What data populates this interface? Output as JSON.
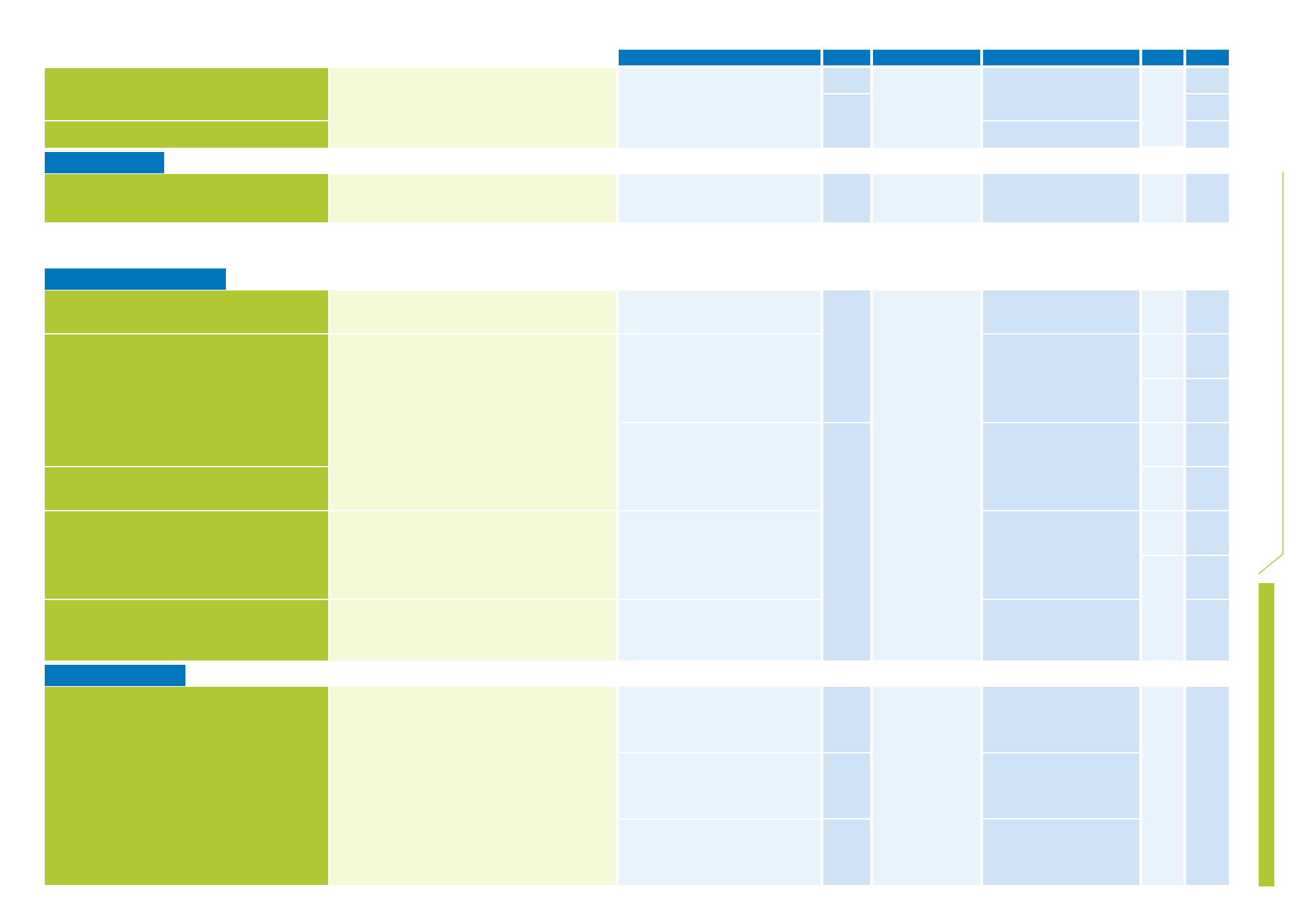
{
  "colors": {
    "header_blue": "#0277c0",
    "label_green": "#b1c834",
    "description_pale_green": "#f4fad8",
    "cell_light_blue": "#e9f3fc",
    "cell_mid_blue": "#cfe2f5"
  },
  "document": {
    "header_row": {
      "columns": [
        "",
        "",
        "",
        "",
        "",
        ""
      ]
    },
    "sections": [
      {
        "name": "",
        "rows": []
      },
      {
        "name": "",
        "rows": []
      },
      {
        "name": "",
        "rows": []
      },
      {
        "name": "",
        "rows": []
      }
    ]
  }
}
